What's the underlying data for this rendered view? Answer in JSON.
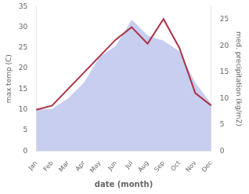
{
  "chart_data": {
    "type": "line",
    "categories": [
      "Jan",
      "Feb",
      "Mar",
      "Apr",
      "May",
      "Jun",
      "Jul",
      "Aug",
      "Sep",
      "Oct",
      "Nov",
      "Dec"
    ],
    "series": [
      {
        "type": "area",
        "color": "#c8cef0",
        "axis": "y2",
        "values": [
          8,
          8,
          10,
          13,
          18,
          20,
          25,
          22,
          21,
          19,
          13,
          9
        ]
      },
      {
        "type": "line",
        "color": "#aa3344",
        "values": [
          10,
          11,
          15,
          19,
          23,
          27,
          30,
          26,
          32,
          25,
          14,
          11
        ]
      }
    ],
    "xlabel": "date (month)",
    "ylabel": "max temp (C)",
    "y2label": "med. precipitation (kg/m2)",
    "ylim": [
      0,
      35
    ],
    "yticks": [
      0,
      5,
      10,
      15,
      20,
      25,
      30,
      35
    ],
    "y2lim": [
      0,
      27.5
    ],
    "y2ticks": [
      0,
      5,
      10,
      15,
      20,
      25
    ],
    "grid": false
  }
}
